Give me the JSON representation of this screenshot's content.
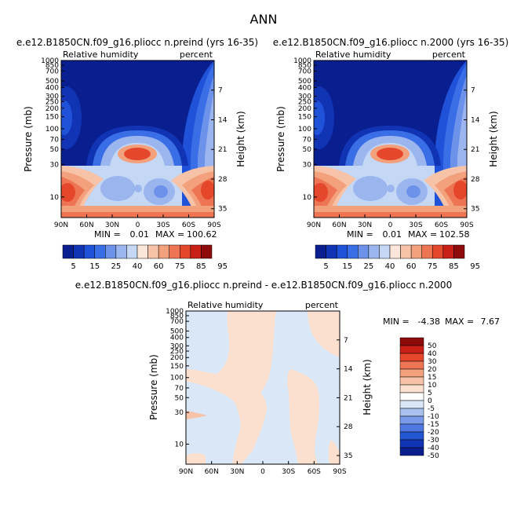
{
  "figure_title": "ANN",
  "shared": {
    "variable": "Relative humidity",
    "units": "percent",
    "ylabel_left": "Pressure (mb)",
    "ylabel_right": "Height (km)",
    "pressure_ticks": [
      "10",
      "30",
      "50",
      "70",
      "100",
      "150",
      "200",
      "250",
      "300",
      "400",
      "500",
      "700",
      "850",
      "1000"
    ],
    "height_ticks": [
      "35",
      "28",
      "21",
      "14",
      "7"
    ],
    "lat_ticks": [
      "90N",
      "60N",
      "30N",
      "0",
      "30S",
      "60S",
      "90S"
    ]
  },
  "panels": {
    "preind": {
      "title": "e.e12.B1850CN.f09_g16.pliocc n.preind (yrs 16-35)",
      "min_label": "MIN =",
      "min_value": "0.01",
      "max_label": "MAX =",
      "max_value": "100.62"
    },
    "y2000": {
      "title": "e.e12.B1850CN.f09_g16.pliocc n.2000 (yrs 16-35)",
      "min_label": "MIN =",
      "min_value": "0.01",
      "max_label": "MAX =",
      "max_value": "102.58"
    },
    "diff": {
      "title": "e.e12.B1850CN.f09_g16.pliocc n.preind - e.e12.B1850CN.f09_g16.pliocc n.2000",
      "min_label": "MIN =",
      "min_value": "-4.38",
      "max_label": "MAX =",
      "max_value": "7.67"
    }
  },
  "colorbar_main": {
    "labels": [
      "5",
      "15",
      "25",
      "40",
      "60",
      "75",
      "85",
      "95"
    ],
    "colors": [
      "#0a1f8f",
      "#1034b4",
      "#1f52d9",
      "#3a6ee6",
      "#6d92ea",
      "#9bb5ee",
      "#c4d7f5",
      "#fbe6d9",
      "#f6c3a8",
      "#f3a07c",
      "#ee7553",
      "#e4472c",
      "#c81f17",
      "#8e0b0b"
    ]
  },
  "colorbar_diff": {
    "labels": [
      "50",
      "40",
      "30",
      "20",
      "15",
      "10",
      "5",
      "0",
      "-5",
      "-10",
      "-15",
      "-20",
      "-30",
      "-40",
      "-50"
    ],
    "colors": [
      "#8e0b0b",
      "#c81f17",
      "#e4472c",
      "#ee7553",
      "#f3a07c",
      "#f6c3a8",
      "#fbe0cf",
      "#ffffff",
      "#d9e7f6",
      "#a9c1ee",
      "#7b9bea",
      "#4f79e1",
      "#2556d2",
      "#1034b4",
      "#0a1f8f"
    ]
  },
  "chart_data": [
    {
      "type": "heatmap",
      "title": "e.e12.B1850CN.f09_g16.pliocc n.preind (yrs 16-35)",
      "x_ticks": [
        "90N",
        "60N",
        "30N",
        "0",
        "30S",
        "60S",
        "90S"
      ],
      "xlim": [
        90,
        -90
      ],
      "ylabel": "Pressure (mb)",
      "ylim_mb": [
        1000,
        5
      ],
      "log_pressure": true,
      "min": 0.01,
      "max": 100.62,
      "contour_levels": [
        5,
        15,
        25,
        40,
        60,
        75,
        85,
        95
      ]
    },
    {
      "type": "heatmap",
      "title": "e.e12.B1850CN.f09_g16.pliocc n.2000 (yrs 16-35)",
      "x_ticks": [
        "90N",
        "60N",
        "30N",
        "0",
        "30S",
        "60S",
        "90S"
      ],
      "xlim": [
        90,
        -90
      ],
      "ylabel": "Pressure (mb)",
      "ylim_mb": [
        1000,
        5
      ],
      "log_pressure": true,
      "min": 0.01,
      "max": 102.58,
      "contour_levels": [
        5,
        15,
        25,
        40,
        60,
        75,
        85,
        95
      ]
    },
    {
      "type": "heatmap",
      "title": "e.e12.B1850CN.f09_g16.pliocc n.preind - e.e12.B1850CN.f09_g16.pliocc n.2000",
      "x_ticks": [
        "90N",
        "60N",
        "30N",
        "0",
        "30S",
        "60S",
        "90S"
      ],
      "xlim": [
        90,
        -90
      ],
      "ylabel": "Pressure (mb)",
      "ylim_mb": [
        1000,
        5
      ],
      "log_pressure": true,
      "min": -4.38,
      "max": 7.67,
      "contour_levels": [
        -50,
        -40,
        -30,
        -20,
        -15,
        -10,
        -5,
        0,
        5,
        10,
        15,
        20,
        30,
        40,
        50
      ]
    }
  ]
}
